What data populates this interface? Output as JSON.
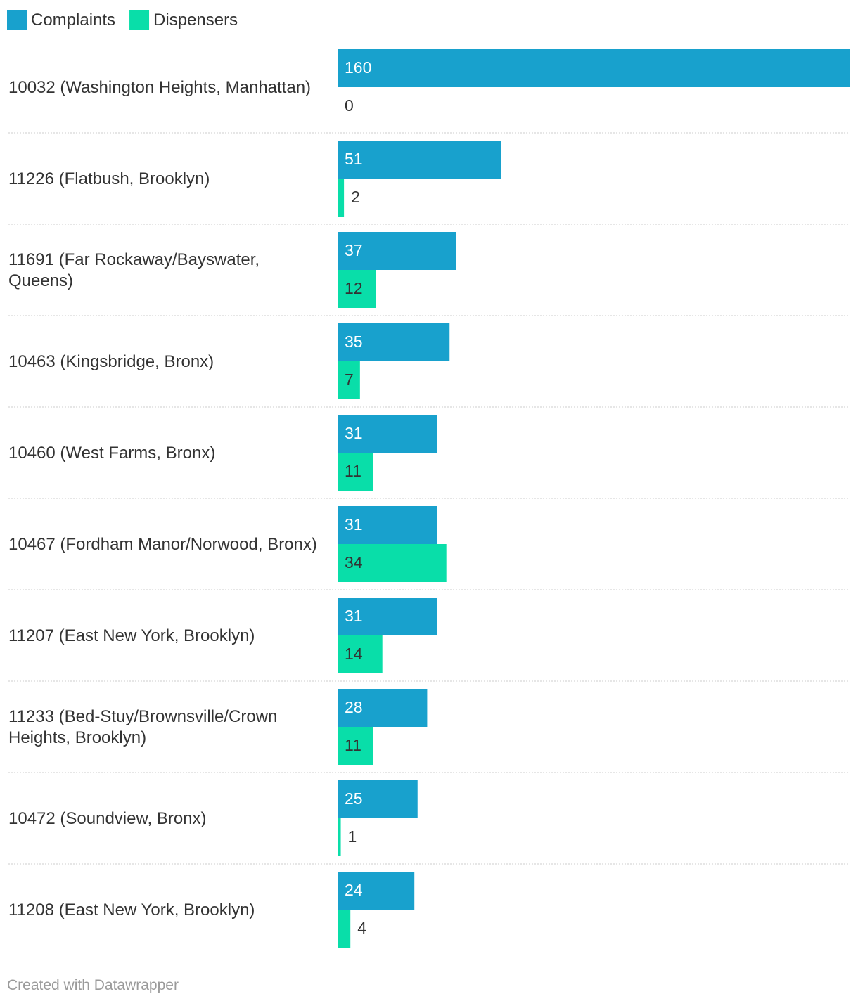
{
  "chart_data": {
    "type": "bar",
    "orientation": "horizontal-grouped",
    "legend_position": "top-left",
    "series": [
      {
        "name": "Complaints",
        "color": "#18a1cd",
        "values": [
          160,
          51,
          37,
          35,
          31,
          31,
          31,
          28,
          25,
          24
        ]
      },
      {
        "name": "Dispensers",
        "color": "#09dea9",
        "values": [
          0,
          2,
          12,
          7,
          11,
          34,
          14,
          11,
          1,
          4
        ]
      }
    ],
    "categories": [
      "10032 (Washington Heights, Manhattan)",
      "11226 (Flatbush, Brooklyn)",
      "11691 (Far Rockaway/Bayswater, Queens)",
      "10463 (Kingsbridge, Bronx)",
      "10460 (West Farms, Bronx)",
      "10467 (Fordham Manor/Norwood, Bronx)",
      "11207 (East New York, Brooklyn)",
      "11233 (Bed-Stuy/Brownsville/Crown Heights, Brooklyn)",
      "10472 (Soundview, Bronx)",
      "11208 (East New York, Brooklyn)"
    ],
    "xlim": [
      0,
      160
    ],
    "title": "",
    "xlabel": "",
    "ylabel": "",
    "grid": false
  },
  "footer": {
    "credit": "Created with Datawrapper"
  }
}
